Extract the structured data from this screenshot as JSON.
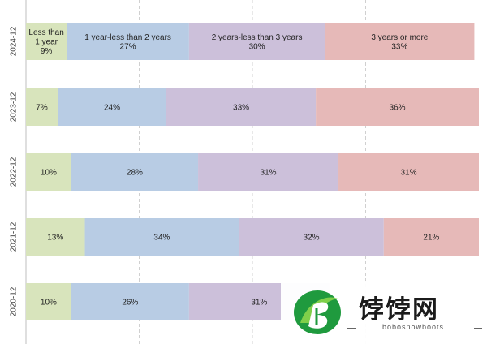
{
  "chart_data": {
    "type": "bar",
    "orientation": "horizontal",
    "stacked": "percent",
    "categories": [
      "2024-12",
      "2023-12",
      "2022-12",
      "2021-12",
      "2020-12"
    ],
    "series": [
      {
        "name": "Less than 1 year",
        "values": [
          9,
          7,
          10,
          13,
          10
        ],
        "color": "#d8e4bc"
      },
      {
        "name": "1 year-less than 2 years",
        "values": [
          27,
          24,
          28,
          34,
          26
        ],
        "color": "#b8cce4"
      },
      {
        "name": "2 years-less than 3 years",
        "values": [
          30,
          33,
          31,
          32,
          31
        ],
        "color": "#ccc0da"
      },
      {
        "name": "3 years or more",
        "values": [
          33,
          36,
          31,
          21,
          null
        ],
        "color": "#e6b9b8"
      }
    ],
    "value_suffix": "%",
    "first_row_label_includes_series_name": true,
    "xlim": [
      0,
      100
    ],
    "grid": "vertical dashed",
    "legend": "none"
  },
  "watermark": {
    "title": "饽饽网",
    "subtitle": "bobosnowboots",
    "logo_colors": [
      "#1f9a3e",
      "#7fcf4a"
    ]
  }
}
